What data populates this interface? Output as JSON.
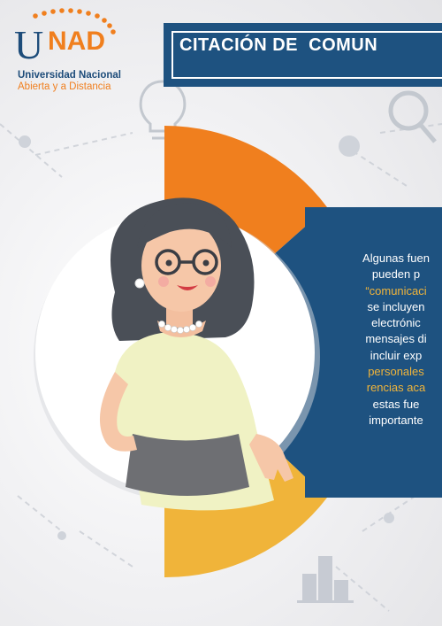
{
  "logo": {
    "brand_u": "U",
    "brand_nad": "NAD",
    "line1": "Universidad Nacional",
    "line2": "Abierta y a Distancia"
  },
  "banner": {
    "title": "CITACIÓN DE  COMUN"
  },
  "body_text": {
    "lines": [
      {
        "text": "Algunas fuen",
        "highlight": false
      },
      {
        "text": "pueden p",
        "highlight": false
      },
      {
        "text": "“comunicaci",
        "highlight": true
      },
      {
        "text": "se incluyen",
        "highlight": false
      },
      {
        "text": "electrónic",
        "highlight": false
      },
      {
        "text": "mensajes di",
        "highlight": false
      },
      {
        "text": "incluir exp",
        "highlight": false
      },
      {
        "text": "personales",
        "highlight": true
      },
      {
        "text": "rencias aca",
        "highlight": true
      },
      {
        "text": "estas fue",
        "highlight": false
      },
      {
        "text": "importante",
        "highlight": false
      }
    ]
  },
  "colors": {
    "navy": "#1e5280",
    "orange": "#f07f1e",
    "yellow": "#f0b43a",
    "skin": "#f6c7a8",
    "hair": "#4a4f57"
  }
}
